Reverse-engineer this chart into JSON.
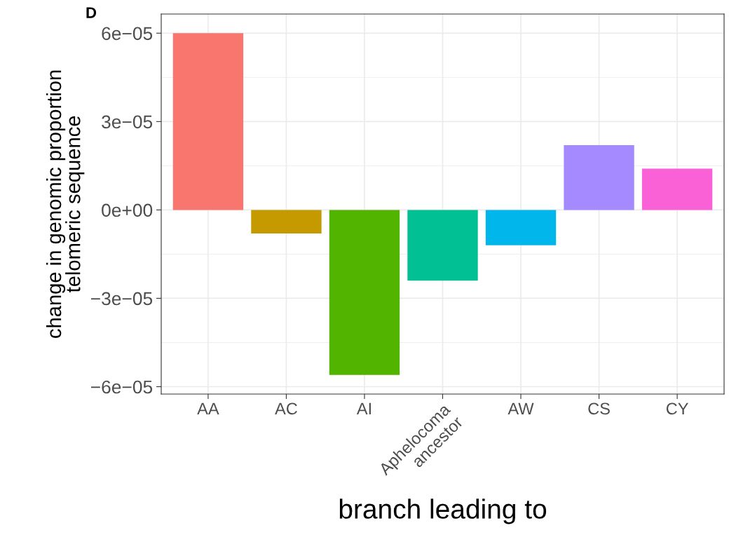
{
  "chart_data": {
    "type": "bar",
    "xlabel": "branch leading to",
    "ylabel": "change in genomic proportion\ntelomeric sequence",
    "annotations": [
      "D"
    ],
    "categories": [
      "AA",
      "AC",
      "AI",
      "Aphelocoma\nancestor",
      "AW",
      "CS",
      "CY"
    ],
    "values": [
      6e-05,
      -8e-06,
      -5.6e-05,
      -2.4e-05,
      -1.2e-05,
      2.2e-05,
      1.4e-05
    ],
    "colors": [
      "#f8766d",
      "#c49a00",
      "#53b400",
      "#00c094",
      "#00b6eb",
      "#a58aff",
      "#fb61d7"
    ],
    "ylim": [
      -6.25e-05,
      6.65e-05
    ],
    "yticks": [
      {
        "value": -6e-05,
        "label": "−6e−05"
      },
      {
        "value": -3e-05,
        "label": "−3e−05"
      },
      {
        "value": 0,
        "label": "0e+00"
      },
      {
        "value": 3e-05,
        "label": "3e−05"
      },
      {
        "value": 6e-05,
        "label": "6e−05"
      }
    ],
    "grid": true,
    "legend": false
  }
}
